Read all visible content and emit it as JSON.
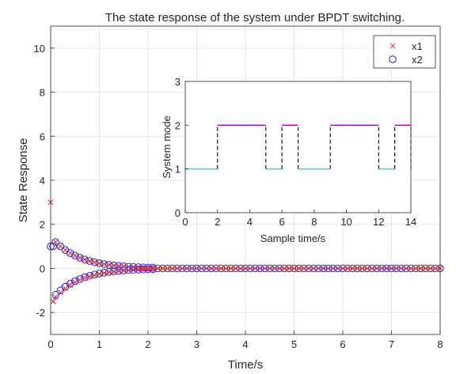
{
  "chart_data": [
    {
      "type": "scatter",
      "title": "The state response of the system under BPDT switching.",
      "xlabel": "Time/s",
      "ylabel": "State Response",
      "xlim": [
        0,
        8
      ],
      "ylim": [
        -3,
        11
      ],
      "xticks": [
        "0",
        "1",
        "2",
        "3",
        "4",
        "5",
        "6",
        "7",
        "8"
      ],
      "yticks": [
        "-2",
        "0",
        "2",
        "4",
        "6",
        "8",
        "10"
      ],
      "grid": true,
      "legend_position": "top-right",
      "series": [
        {
          "name": "x1",
          "marker": "x",
          "color": "#d62728",
          "x": [
            0,
            0.05
          ],
          "y": [
            3,
            -1.5
          ],
          "note_rest": "two decaying branches from +1.2 and -1.3 toward 0 by t=2, then 0 until t=8",
          "branch_upper_start": 1.2,
          "branch_lower_start": -1.3,
          "settle_time": 2.2,
          "sample_step": 0.1
        },
        {
          "name": "x2",
          "marker": "o",
          "color": "#1f1fe6",
          "x": [
            0,
            0.05
          ],
          "y": [
            1,
            1
          ],
          "branch_upper_start": 1.2,
          "branch_lower_start": -1.2,
          "settle_time": 2.2,
          "sample_step": 0.1
        }
      ]
    },
    {
      "type": "line",
      "inset": true,
      "xlabel": "Sample time/s",
      "ylabel": "System mode",
      "xlim": [
        0,
        14
      ],
      "ylim": [
        0,
        3
      ],
      "xticks": [
        "0",
        "2",
        "4",
        "6",
        "8",
        "10",
        "12",
        "14"
      ],
      "yticks": [
        "0",
        "1",
        "2",
        "3"
      ],
      "segments": [
        {
          "x0": 0,
          "x1": 2,
          "mode": 1
        },
        {
          "x0": 2,
          "x1": 5,
          "mode": 2
        },
        {
          "x0": 5,
          "x1": 6,
          "mode": 1
        },
        {
          "x0": 6,
          "x1": 7,
          "mode": 2
        },
        {
          "x0": 7,
          "x1": 9,
          "mode": 1
        },
        {
          "x0": 9,
          "x1": 12,
          "mode": 2
        },
        {
          "x0": 12,
          "x1": 13,
          "mode": 1
        },
        {
          "x0": 13,
          "x1": 14,
          "mode": 2
        }
      ],
      "colors": {
        "mode1": "#00e5e5",
        "mode2": "#b000b0",
        "switch": "#000000"
      }
    }
  ]
}
